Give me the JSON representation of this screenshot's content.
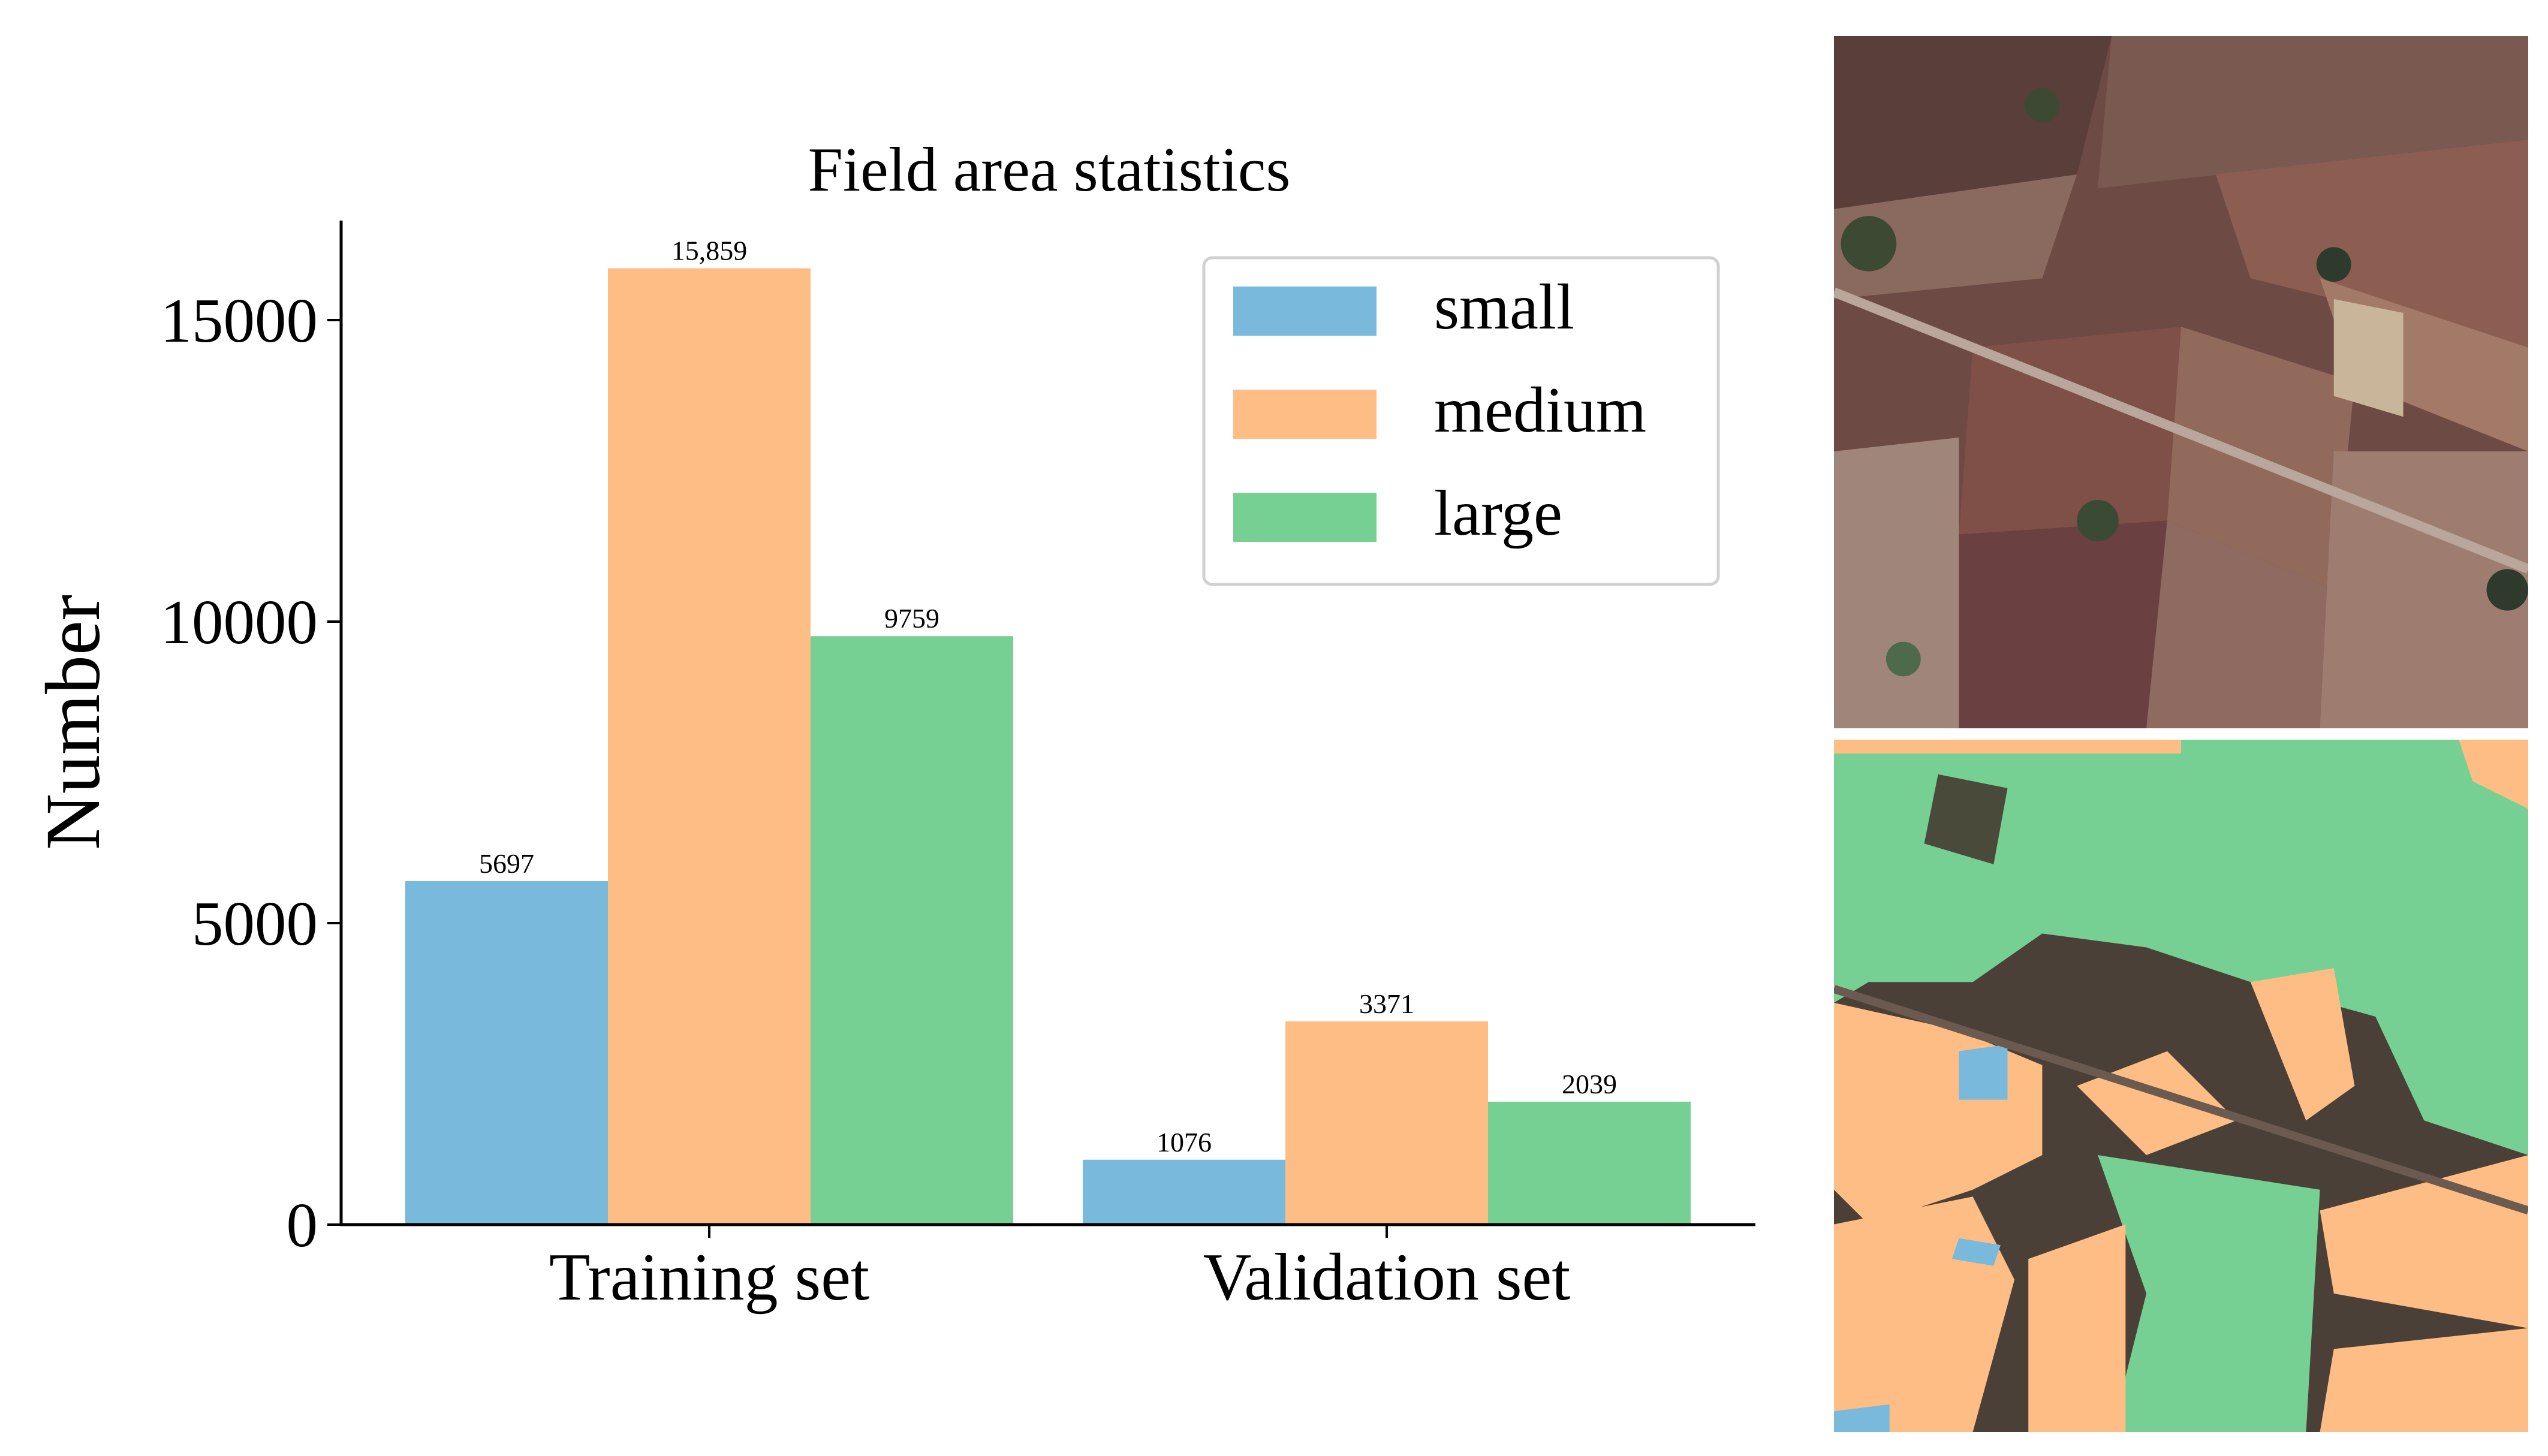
{
  "chart_data": {
    "type": "bar",
    "title": "Field area statistics",
    "xlabel": "",
    "ylabel": "Number",
    "categories": [
      "Training set",
      "Validation set"
    ],
    "series": [
      {
        "name": "small",
        "values": [
          5697,
          1076
        ],
        "labels": [
          "5697",
          "1076"
        ],
        "color": "#78b9dc"
      },
      {
        "name": "medium",
        "values": [
          15859,
          3371
        ],
        "labels": [
          "15,859",
          "3371"
        ],
        "color": "#fdbd85"
      },
      {
        "name": "large",
        "values": [
          9759,
          2039
        ],
        "labels": [
          "9759",
          "2039"
        ],
        "color": "#76d093"
      }
    ],
    "ylim": [
      0,
      16650
    ],
    "yticks": [
      0,
      5000,
      10000,
      15000
    ],
    "ytick_labels": [
      "0",
      "5000",
      "10000",
      "15000"
    ],
    "grid": false,
    "legend_position": "top-right"
  },
  "images": {
    "top_label": "satellite-image",
    "bottom_label": "field-segmentation-mask"
  }
}
